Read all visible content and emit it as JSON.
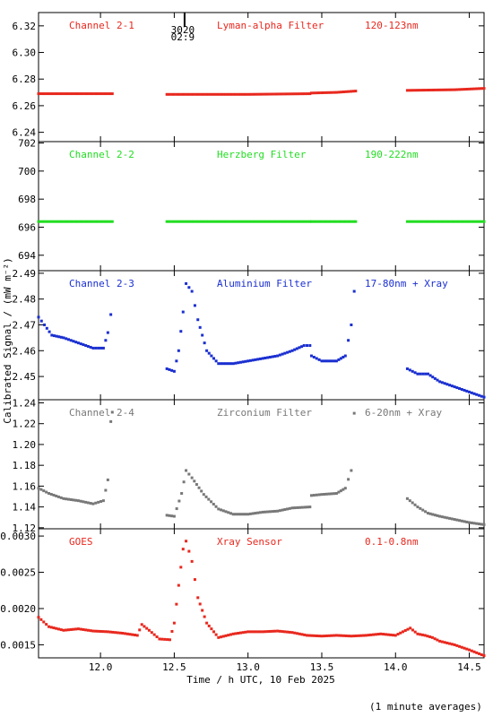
{
  "xlabel": "Time / h UTC, 10 Feb 2025",
  "ylabel": "Calibrated Signal / (mW m⁻²)",
  "footnote": "(1 minute averages)",
  "marker_top": "3020",
  "marker_bottom": "02:9",
  "marker_time": 12.57,
  "xlim": [
    11.58,
    14.6
  ],
  "xticks": [
    12.0,
    12.5,
    13.0,
    13.5,
    14.0,
    14.5
  ],
  "xtick_labels": [
    "12.0",
    "12.5",
    "13.0",
    "13.5",
    "14.0",
    "14.5"
  ],
  "chart_data": [
    {
      "type": "scatter",
      "channel_label": "Channel 2-1",
      "filter_label": "Lyman-alpha Filter",
      "band_label": "120-123nm",
      "color": "#e8281e",
      "ylim": [
        6.233,
        6.33
      ],
      "yticks": [
        6.24,
        6.26,
        6.28,
        6.3,
        6.32
      ],
      "ytick_labels": [
        "6.24",
        "6.26",
        "6.28",
        "6.30",
        "6.32"
      ],
      "segments": [
        {
          "x": [
            11.58,
            12.08
          ],
          "y": [
            6.269,
            6.269
          ]
        },
        {
          "x": [
            12.45,
            13.0,
            13.42
          ],
          "y": [
            6.2685,
            6.2685,
            6.269
          ]
        },
        {
          "x": [
            13.43,
            13.6,
            13.73
          ],
          "y": [
            6.2695,
            6.27,
            6.271
          ]
        },
        {
          "x": [
            14.08,
            14.4,
            14.6
          ],
          "y": [
            6.2715,
            6.272,
            6.273
          ]
        }
      ]
    },
    {
      "type": "scatter",
      "channel_label": "Channel 2-2",
      "filter_label": "Herzberg Filter",
      "band_label": "190-222nm",
      "color": "#22dd22",
      "ylim": [
        692.9,
        702.1
      ],
      "yticks": [
        694,
        696,
        698,
        700,
        702
      ],
      "ytick_labels": [
        "694",
        "696",
        "698",
        "700",
        "702"
      ],
      "segments": [
        {
          "x": [
            11.58,
            12.08
          ],
          "y": [
            696.4,
            696.4
          ]
        },
        {
          "x": [
            12.45,
            13.42
          ],
          "y": [
            696.4,
            696.4
          ]
        },
        {
          "x": [
            13.43,
            13.73
          ],
          "y": [
            696.4,
            696.4
          ]
        },
        {
          "x": [
            14.08,
            14.6
          ],
          "y": [
            696.4,
            696.4
          ]
        }
      ]
    },
    {
      "type": "scatter",
      "channel_label": "Channel 2-3",
      "filter_label": "Aluminium Filter",
      "band_label": "17-80nm + Xray",
      "color": "#1a2fd0",
      "ylim": [
        2.441,
        2.491
      ],
      "yticks": [
        2.45,
        2.46,
        2.47,
        2.48,
        2.49
      ],
      "ytick_labels": [
        "2.45",
        "2.46",
        "2.47",
        "2.48",
        "2.49"
      ],
      "segments": [
        {
          "x": [
            11.58,
            11.62,
            11.67,
            11.75,
            11.85,
            11.95,
            12.02,
            12.05,
            12.07
          ],
          "y": [
            2.473,
            2.47,
            2.466,
            2.465,
            2.463,
            2.461,
            2.461,
            2.467,
            2.474
          ]
        },
        {
          "x": [
            12.45,
            12.5,
            12.53,
            12.56,
            12.58,
            12.62,
            12.66,
            12.72,
            12.8,
            12.9,
            13.0,
            13.1,
            13.2,
            13.3,
            13.38,
            13.42
          ],
          "y": [
            2.453,
            2.452,
            2.46,
            2.475,
            2.486,
            2.483,
            2.472,
            2.46,
            2.455,
            2.455,
            2.456,
            2.457,
            2.458,
            2.46,
            2.462,
            2.462
          ]
        },
        {
          "x": [
            13.43,
            13.5,
            13.6,
            13.66,
            13.7,
            13.72
          ],
          "y": [
            2.458,
            2.456,
            2.456,
            2.458,
            2.47,
            2.483
          ]
        },
        {
          "x": [
            14.08,
            14.15,
            14.22,
            14.3,
            14.4,
            14.5,
            14.6
          ],
          "y": [
            2.453,
            2.451,
            2.451,
            2.448,
            2.446,
            2.444,
            2.442
          ]
        }
      ]
    },
    {
      "type": "scatter",
      "channel_label": "Channel 2-4",
      "filter_label": "Zirconium Filter",
      "band_label": "6-20nm + Xray",
      "color": "#787878",
      "ylim": [
        1.119,
        1.243
      ],
      "yticks": [
        1.12,
        1.14,
        1.16,
        1.18,
        1.2,
        1.22,
        1.24
      ],
      "ytick_labels": [
        "1.12",
        "1.14",
        "1.16",
        "1.18",
        "1.20",
        "1.22",
        "1.24"
      ],
      "segments": [
        {
          "x": [
            11.58,
            11.65,
            11.75,
            11.85,
            11.95,
            12.02,
            12.05,
            12.07,
            12.08
          ],
          "y": [
            1.158,
            1.153,
            1.148,
            1.146,
            1.143,
            1.146,
            1.166,
            1.222,
            1.231
          ]
        },
        {
          "x": [
            12.45,
            12.5,
            12.55,
            12.58,
            12.62,
            12.7,
            12.8,
            12.9,
            13.0,
            13.1,
            13.2,
            13.3,
            13.42
          ],
          "y": [
            1.132,
            1.131,
            1.153,
            1.175,
            1.168,
            1.152,
            1.138,
            1.133,
            1.133,
            1.135,
            1.136,
            1.139,
            1.14
          ]
        },
        {
          "x": [
            13.43,
            13.5,
            13.6,
            13.66,
            13.7,
            13.72
          ],
          "y": [
            1.151,
            1.152,
            1.153,
            1.158,
            1.175,
            1.23
          ]
        },
        {
          "x": [
            14.08,
            14.15,
            14.22,
            14.3,
            14.4,
            14.5,
            14.6
          ],
          "y": [
            1.148,
            1.14,
            1.134,
            1.131,
            1.128,
            1.125,
            1.123
          ]
        }
      ]
    },
    {
      "type": "line",
      "channel_label": "GOES",
      "filter_label": "Xray Sensor",
      "band_label": "0.1-0.8nm",
      "color": "#e8281e",
      "ylim": [
        0.00132,
        0.0031
      ],
      "yticks": [
        0.0015,
        0.002,
        0.0025,
        0.003
      ],
      "ytick_labels": [
        "0.0015",
        "0.0020",
        "0.0025",
        "0.0030"
      ],
      "segments": [
        {
          "x": [
            11.58,
            11.65,
            11.75,
            11.85,
            11.95,
            12.05,
            12.15,
            12.25,
            12.28,
            12.33,
            12.4,
            12.47,
            12.5,
            12.53,
            12.56,
            12.58,
            12.62,
            12.66,
            12.72,
            12.8,
            12.9,
            13.0,
            13.1,
            13.2,
            13.3,
            13.4,
            13.5,
            13.6,
            13.7,
            13.8,
            13.9,
            14.0,
            14.05,
            14.1,
            14.15,
            14.2,
            14.25,
            14.3,
            14.4,
            14.5,
            14.6
          ],
          "y": [
            0.00188,
            0.00175,
            0.0017,
            0.00172,
            0.00169,
            0.00168,
            0.00166,
            0.00163,
            0.00178,
            0.0017,
            0.00158,
            0.00157,
            0.0018,
            0.00232,
            0.00282,
            0.00293,
            0.00265,
            0.00215,
            0.0018,
            0.0016,
            0.00165,
            0.00168,
            0.00168,
            0.00169,
            0.00167,
            0.00163,
            0.00162,
            0.00163,
            0.00162,
            0.00163,
            0.00165,
            0.00163,
            0.00168,
            0.00173,
            0.00165,
            0.00163,
            0.0016,
            0.00155,
            0.0015,
            0.00143,
            0.00135
          ]
        }
      ]
    }
  ]
}
